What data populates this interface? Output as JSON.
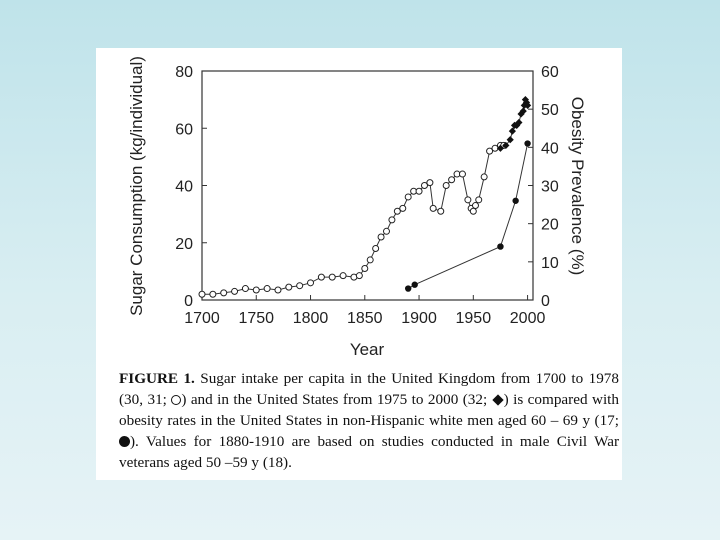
{
  "chart_data": {
    "type": "scatter",
    "title": "",
    "xlabel": "Year",
    "ylabel_left": "Sugar Consumption (kg/individual)",
    "ylabel_right": "Obesity Prevalence (%)",
    "xlim": [
      1700,
      2005
    ],
    "ylim_left": [
      0,
      80
    ],
    "ylim_right": [
      0,
      60
    ],
    "x_ticks": [
      "1700",
      "1750",
      "1800",
      "1850",
      "1900",
      "1950",
      "2000"
    ],
    "y_left_ticks": [
      "0",
      "20",
      "40",
      "60",
      "80"
    ],
    "y_right_ticks": [
      "0",
      "10",
      "20",
      "30",
      "40",
      "50",
      "60"
    ],
    "series": [
      {
        "name": "UK sugar intake per capita (1700-1978)",
        "axis": "left",
        "marker": "open-circle",
        "connected": true,
        "x": [
          1700,
          1710,
          1720,
          1730,
          1740,
          1750,
          1760,
          1770,
          1780,
          1790,
          1800,
          1810,
          1820,
          1830,
          1840,
          1845,
          1850,
          1855,
          1860,
          1865,
          1870,
          1875,
          1880,
          1885,
          1890,
          1895,
          1900,
          1905,
          1910,
          1913,
          1920,
          1925,
          1930,
          1935,
          1940,
          1945,
          1948,
          1950,
          1952,
          1955,
          1960,
          1965,
          1970,
          1975,
          1978
        ],
        "values": [
          2,
          2,
          2.5,
          3,
          4,
          3.5,
          4,
          3.5,
          4.5,
          5,
          6,
          8,
          8,
          8.5,
          8,
          8.5,
          11,
          14,
          18,
          22,
          24,
          28,
          31,
          32,
          36,
          38,
          38,
          40,
          41,
          32,
          31,
          40,
          42,
          44,
          44,
          35,
          32,
          31,
          33,
          35,
          43,
          52,
          53,
          54,
          54
        ]
      },
      {
        "name": "US sugar intake (1975-2000)",
        "axis": "left",
        "marker": "diamond",
        "connected": true,
        "x": [
          1975,
          1980,
          1984,
          1986,
          1988,
          1990,
          1992,
          1994,
          1996,
          1997,
          1998,
          1999,
          2000
        ],
        "values": [
          53,
          54,
          56,
          59,
          61,
          61,
          62,
          65,
          66,
          68,
          70,
          69,
          68
        ]
      },
      {
        "name": "US obesity rates, non-Hispanic white men aged 60-69 y",
        "axis": "right",
        "marker": "filled-circle",
        "connected": true,
        "x": [
          1890,
          1896,
          1975,
          1989,
          2000
        ],
        "values": [
          3,
          4,
          14,
          26,
          41
        ]
      }
    ]
  },
  "caption": {
    "label": "FIGURE 1.",
    "part1": "Sugar intake per capita in the United Kingdom from 1700 to 1978 (30, 31;",
    "part2": ") and in the United States from 1975 to 2000 (32;",
    "part3": ") is compared with obesity rates in the United States in non-Hispanic white men aged 60 – 69 y (17;",
    "part4": "). Values for 1880-1910 are based on studies conducted in male Civil War veterans aged 50 –59 y (18)."
  }
}
